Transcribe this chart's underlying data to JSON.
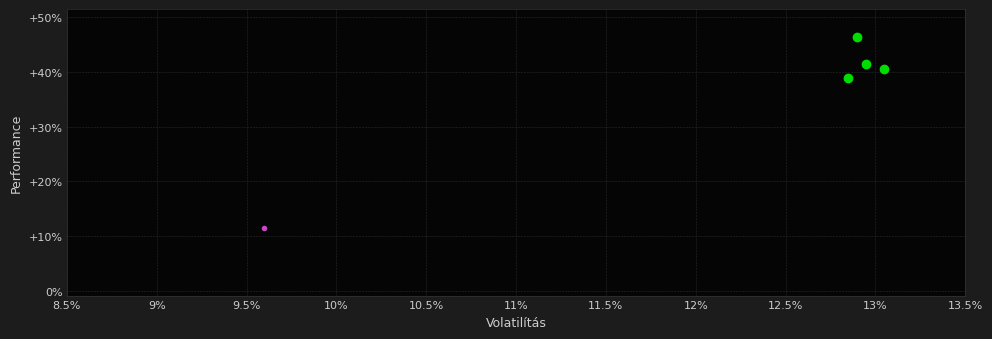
{
  "background_color": "#1c1c1c",
  "plot_bg_color": "#050505",
  "grid_color": "#2a2a2a",
  "text_color": "#cccccc",
  "xlabel": "Volatilítás",
  "ylabel": "Performance",
  "xlim": [
    0.085,
    0.135
  ],
  "ylim": [
    -0.01,
    0.515
  ],
  "xticks": [
    0.085,
    0.09,
    0.095,
    0.1,
    0.105,
    0.11,
    0.115,
    0.12,
    0.125,
    0.13,
    0.135
  ],
  "yticks": [
    0.0,
    0.1,
    0.2,
    0.3,
    0.4,
    0.5
  ],
  "ytick_labels": [
    "0%",
    "+10%",
    "+20%",
    "+30%",
    "+40%",
    "+50%"
  ],
  "xtick_labels": [
    "8.5%",
    "9%",
    "9.5%",
    "10%",
    "10.5%",
    "11%",
    "11.5%",
    "12%",
    "12.5%",
    "13%",
    "13.5%"
  ],
  "points_green": [
    [
      0.129,
      0.465
    ],
    [
      0.1295,
      0.415
    ],
    [
      0.1305,
      0.405
    ],
    [
      0.1285,
      0.39
    ]
  ],
  "points_magenta": [
    [
      0.096,
      0.115
    ]
  ],
  "marker_size_green": 6,
  "marker_size_magenta": 3,
  "font_size_ticks": 8,
  "font_size_label": 9
}
